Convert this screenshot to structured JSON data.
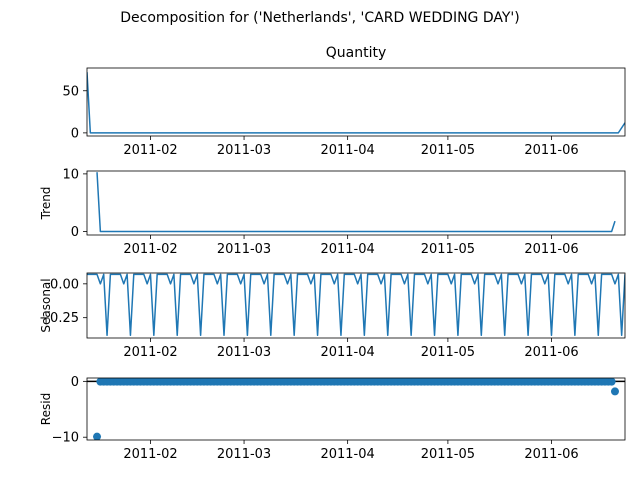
{
  "suptitle": "Decomposition for ('Netherlands', 'CARD WEDDING DAY')",
  "colors": {
    "line": "#1f77b4",
    "axis": "#000000",
    "background": "#ffffff"
  },
  "x_domain": [
    "2011-01-13",
    "2011-06-23"
  ],
  "x_ticks": [
    {
      "date": "2011-02-01",
      "label": "2011-02"
    },
    {
      "date": "2011-03-01",
      "label": "2011-03"
    },
    {
      "date": "2011-04-01",
      "label": "2011-04"
    },
    {
      "date": "2011-05-01",
      "label": "2011-05"
    },
    {
      "date": "2011-06-01",
      "label": "2011-06"
    }
  ],
  "chart_data": [
    {
      "type": "line",
      "title": "Quantity",
      "ylabel": "",
      "ylim": [
        -3.7,
        77
      ],
      "y_ticks": [
        {
          "value": 0,
          "label": "0"
        },
        {
          "value": 50,
          "label": "50"
        }
      ],
      "series": [
        {
          "points": [
            [
              "2011-01-13",
              72
            ],
            [
              "2011-01-14",
              0
            ],
            [
              "2011-06-21",
              0
            ],
            [
              "2011-06-23",
              12
            ]
          ]
        }
      ]
    },
    {
      "type": "line",
      "title": "",
      "ylabel": "Trend",
      "ylim": [
        -0.6,
        10.5
      ],
      "y_ticks": [
        {
          "value": 0,
          "label": "0"
        },
        {
          "value": 10,
          "label": "10"
        }
      ],
      "series": [
        {
          "points": [
            [
              "2011-01-16",
              10.3
            ],
            [
              "2011-01-17",
              0
            ],
            [
              "2011-06-19",
              0
            ],
            [
              "2011-06-20",
              1.8
            ]
          ]
        }
      ]
    },
    {
      "type": "line",
      "title": "",
      "ylabel": "Seasonal",
      "ylim": [
        -0.4,
        0.08
      ],
      "y_ticks": [
        {
          "value": 0,
          "label": "0.00"
        },
        {
          "value": -0.25,
          "label": "−0.25"
        }
      ],
      "series": [
        {
          "generated": "weekly-pattern",
          "start": "2011-01-13",
          "end": "2011-06-23",
          "weekly_pattern": [
            0.07,
            0.07,
            0.07,
            0.07,
            0.0,
            0.07,
            -0.38
          ]
        }
      ]
    },
    {
      "type": "scatter",
      "title": "",
      "ylabel": "Resid",
      "ylim": [
        -10.5,
        0.6
      ],
      "y_ticks": [
        {
          "value": 0,
          "label": "0"
        },
        {
          "value": -10,
          "label": "−10"
        }
      ],
      "hline": 0,
      "series": [
        {
          "generated": "daily-points",
          "start": "2011-01-17",
          "end": "2011-06-19",
          "default_value": -0.05,
          "points": [
            [
              "2011-01-16",
              -9.9
            ],
            [
              "2011-06-20",
              -1.8
            ]
          ]
        }
      ]
    }
  ]
}
